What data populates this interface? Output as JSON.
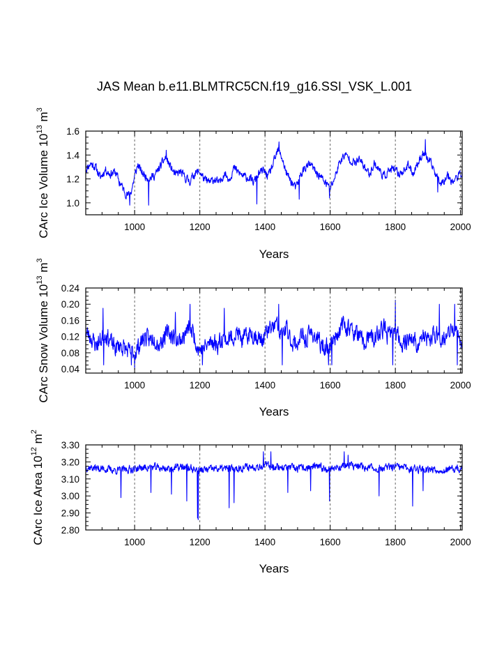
{
  "title": "JAS Mean b.e11.BLMTRC5CN.f19_g16.SSI_VSK_L.001",
  "chart_data": [
    {
      "type": "line",
      "id": "ice-volume",
      "ylabel_main": "CArc Ice Volume 10",
      "ylabel_exp": "13",
      "ylabel_unit": " m",
      "ylabel_unit_exp": "3",
      "xlabel": "Years",
      "xlim": [
        850,
        2005
      ],
      "ylim": [
        0.9,
        1.6
      ],
      "x_ticks": [
        1000,
        1200,
        1400,
        1600,
        1800,
        2000
      ],
      "x_tick_labels": [
        "1000",
        "1200",
        "1400",
        "1600",
        "1800",
        "2000"
      ],
      "y_ticks": [
        1.0,
        1.2,
        1.4,
        1.6
      ],
      "y_tick_labels": [
        "1.0",
        "1.2",
        "1.4",
        "1.6"
      ],
      "grid": "vertical-dashed",
      "color": "#0000ff",
      "anchors": [
        [
          850,
          1.28
        ],
        [
          865,
          1.33
        ],
        [
          880,
          1.3
        ],
        [
          895,
          1.21
        ],
        [
          910,
          1.28
        ],
        [
          925,
          1.24
        ],
        [
          940,
          1.26
        ],
        [
          955,
          1.17
        ],
        [
          970,
          1.09
        ],
        [
          980,
          1.06
        ],
        [
          990,
          1.1
        ],
        [
          1000,
          1.22
        ],
        [
          1010,
          1.32
        ],
        [
          1020,
          1.26
        ],
        [
          1035,
          1.22
        ],
        [
          1050,
          1.21
        ],
        [
          1065,
          1.24
        ],
        [
          1080,
          1.31
        ],
        [
          1095,
          1.38
        ],
        [
          1110,
          1.3
        ],
        [
          1125,
          1.23
        ],
        [
          1140,
          1.26
        ],
        [
          1155,
          1.21
        ],
        [
          1170,
          1.18
        ],
        [
          1185,
          1.25
        ],
        [
          1200,
          1.26
        ],
        [
          1215,
          1.19
        ],
        [
          1230,
          1.17
        ],
        [
          1245,
          1.2
        ],
        [
          1260,
          1.16
        ],
        [
          1275,
          1.25
        ],
        [
          1290,
          1.2
        ],
        [
          1305,
          1.29
        ],
        [
          1320,
          1.25
        ],
        [
          1335,
          1.22
        ],
        [
          1350,
          1.21
        ],
        [
          1365,
          1.17
        ],
        [
          1380,
          1.24
        ],
        [
          1395,
          1.27
        ],
        [
          1410,
          1.22
        ],
        [
          1425,
          1.32
        ],
        [
          1440,
          1.44
        ],
        [
          1452,
          1.38
        ],
        [
          1465,
          1.25
        ],
        [
          1480,
          1.18
        ],
        [
          1495,
          1.12
        ],
        [
          1510,
          1.24
        ],
        [
          1525,
          1.3
        ],
        [
          1540,
          1.32
        ],
        [
          1555,
          1.26
        ],
        [
          1570,
          1.22
        ],
        [
          1585,
          1.17
        ],
        [
          1600,
          1.12
        ],
        [
          1615,
          1.22
        ],
        [
          1630,
          1.35
        ],
        [
          1645,
          1.4
        ],
        [
          1660,
          1.37
        ],
        [
          1675,
          1.33
        ],
        [
          1690,
          1.36
        ],
        [
          1705,
          1.3
        ],
        [
          1720,
          1.24
        ],
        [
          1735,
          1.33
        ],
        [
          1750,
          1.28
        ],
        [
          1765,
          1.22
        ],
        [
          1780,
          1.27
        ],
        [
          1795,
          1.28
        ],
        [
          1810,
          1.24
        ],
        [
          1825,
          1.27
        ],
        [
          1840,
          1.31
        ],
        [
          1855,
          1.25
        ],
        [
          1870,
          1.34
        ],
        [
          1885,
          1.42
        ],
        [
          1900,
          1.36
        ],
        [
          1915,
          1.3
        ],
        [
          1930,
          1.2
        ],
        [
          1945,
          1.17
        ],
        [
          1960,
          1.24
        ],
        [
          1975,
          1.18
        ],
        [
          1990,
          1.21
        ],
        [
          2005,
          1.26
        ]
      ],
      "noise_amp": 0.055,
      "noise_seed": 11,
      "spikes": [
        [
          985,
          0.98
        ],
        [
          1043,
          0.98
        ],
        [
          1375,
          0.99
        ],
        [
          1443,
          1.51
        ],
        [
          1505,
          1.03
        ],
        [
          1598,
          1.04
        ],
        [
          1892,
          1.53
        ],
        [
          1930,
          1.09
        ],
        [
          953,
          1.14
        ],
        [
          1097,
          1.44
        ]
      ]
    },
    {
      "type": "line",
      "id": "snow-volume",
      "ylabel_main": "CArc Snow Volume 10",
      "ylabel_exp": "13",
      "ylabel_unit": " m",
      "ylabel_unit_exp": "3",
      "xlabel": "Years",
      "xlim": [
        850,
        2005
      ],
      "ylim": [
        0.03,
        0.24
      ],
      "x_ticks": [
        1000,
        1200,
        1400,
        1600,
        1800,
        2000
      ],
      "x_tick_labels": [
        "1000",
        "1200",
        "1400",
        "1600",
        "1800",
        "2000"
      ],
      "y_ticks": [
        0.04,
        0.08,
        0.12,
        0.16,
        0.2,
        0.24
      ],
      "y_tick_labels": [
        "0.04",
        "0.08",
        "0.12",
        "0.16",
        "0.20",
        "0.24"
      ],
      "grid": "vertical-dashed",
      "color": "#0000ff",
      "anchors": [
        [
          850,
          0.13
        ],
        [
          865,
          0.12
        ],
        [
          880,
          0.1
        ],
        [
          895,
          0.11
        ],
        [
          910,
          0.13
        ],
        [
          925,
          0.11
        ],
        [
          940,
          0.09
        ],
        [
          955,
          0.1
        ],
        [
          970,
          0.09
        ],
        [
          985,
          0.08
        ],
        [
          1000,
          0.08
        ],
        [
          1015,
          0.1
        ],
        [
          1030,
          0.12
        ],
        [
          1045,
          0.11
        ],
        [
          1060,
          0.12
        ],
        [
          1075,
          0.1
        ],
        [
          1090,
          0.12
        ],
        [
          1105,
          0.13
        ],
        [
          1120,
          0.12
        ],
        [
          1135,
          0.11
        ],
        [
          1150,
          0.12
        ],
        [
          1165,
          0.14
        ],
        [
          1180,
          0.13
        ],
        [
          1195,
          0.09
        ],
        [
          1210,
          0.09
        ],
        [
          1225,
          0.1
        ],
        [
          1240,
          0.11
        ],
        [
          1255,
          0.1
        ],
        [
          1270,
          0.12
        ],
        [
          1285,
          0.11
        ],
        [
          1300,
          0.12
        ],
        [
          1315,
          0.13
        ],
        [
          1330,
          0.11
        ],
        [
          1345,
          0.12
        ],
        [
          1360,
          0.13
        ],
        [
          1375,
          0.12
        ],
        [
          1390,
          0.11
        ],
        [
          1405,
          0.13
        ],
        [
          1420,
          0.14
        ],
        [
          1435,
          0.15
        ],
        [
          1450,
          0.12
        ],
        [
          1465,
          0.14
        ],
        [
          1480,
          0.11
        ],
        [
          1495,
          0.1
        ],
        [
          1510,
          0.12
        ],
        [
          1525,
          0.11
        ],
        [
          1540,
          0.13
        ],
        [
          1555,
          0.12
        ],
        [
          1570,
          0.1
        ],
        [
          1585,
          0.09
        ],
        [
          1600,
          0.1
        ],
        [
          1615,
          0.12
        ],
        [
          1630,
          0.14
        ],
        [
          1645,
          0.15
        ],
        [
          1660,
          0.14
        ],
        [
          1675,
          0.13
        ],
        [
          1690,
          0.12
        ],
        [
          1705,
          0.1
        ],
        [
          1720,
          0.12
        ],
        [
          1735,
          0.11
        ],
        [
          1750,
          0.13
        ],
        [
          1765,
          0.14
        ],
        [
          1780,
          0.12
        ],
        [
          1795,
          0.13
        ],
        [
          1810,
          0.12
        ],
        [
          1825,
          0.1
        ],
        [
          1840,
          0.12
        ],
        [
          1855,
          0.11
        ],
        [
          1870,
          0.1
        ],
        [
          1885,
          0.12
        ],
        [
          1900,
          0.11
        ],
        [
          1915,
          0.12
        ],
        [
          1930,
          0.13
        ],
        [
          1945,
          0.11
        ],
        [
          1960,
          0.12
        ],
        [
          1975,
          0.14
        ],
        [
          1990,
          0.12
        ],
        [
          2005,
          0.11
        ]
      ],
      "noise_amp": 0.034,
      "noise_seed": 23,
      "spikes": [
        [
          903,
          0.19
        ],
        [
          905,
          0.05
        ],
        [
          990,
          0.05
        ],
        [
          1000,
          0.04
        ],
        [
          1125,
          0.18
        ],
        [
          1170,
          0.2
        ],
        [
          1208,
          0.05
        ],
        [
          1275,
          0.19
        ],
        [
          1442,
          0.2
        ],
        [
          1453,
          0.05
        ],
        [
          1595,
          0.05
        ],
        [
          1605,
          0.05
        ],
        [
          1800,
          0.21
        ],
        [
          1792,
          0.05
        ],
        [
          1935,
          0.2
        ],
        [
          1982,
          0.2
        ],
        [
          1990,
          0.05
        ]
      ]
    },
    {
      "type": "line",
      "id": "ice-area",
      "ylabel_main": "CArc Ice Area 10",
      "ylabel_exp": "12",
      "ylabel_unit": " m",
      "ylabel_unit_exp": "2",
      "xlabel": "Years",
      "xlim": [
        850,
        2005
      ],
      "ylim": [
        2.8,
        3.3
      ],
      "x_ticks": [
        1000,
        1200,
        1400,
        1600,
        1800,
        2000
      ],
      "x_tick_labels": [
        "1000",
        "1200",
        "1400",
        "1600",
        "1800",
        "2000"
      ],
      "y_ticks": [
        2.8,
        2.9,
        3.0,
        3.1,
        3.2,
        3.3
      ],
      "y_tick_labels": [
        "2.80",
        "2.90",
        "3.00",
        "3.10",
        "3.20",
        "3.30"
      ],
      "grid": "vertical-dashed",
      "color": "#0000ff",
      "anchors": [
        [
          850,
          3.17
        ],
        [
          900,
          3.16
        ],
        [
          950,
          3.15
        ],
        [
          1000,
          3.16
        ],
        [
          1050,
          3.17
        ],
        [
          1100,
          3.16
        ],
        [
          1150,
          3.17
        ],
        [
          1200,
          3.15
        ],
        [
          1250,
          3.16
        ],
        [
          1300,
          3.16
        ],
        [
          1350,
          3.17
        ],
        [
          1400,
          3.18
        ],
        [
          1450,
          3.17
        ],
        [
          1500,
          3.16
        ],
        [
          1550,
          3.17
        ],
        [
          1600,
          3.16
        ],
        [
          1650,
          3.18
        ],
        [
          1700,
          3.17
        ],
        [
          1750,
          3.16
        ],
        [
          1800,
          3.17
        ],
        [
          1850,
          3.16
        ],
        [
          1900,
          3.16
        ],
        [
          1950,
          3.15
        ],
        [
          2005,
          3.16
        ]
      ],
      "noise_amp": 0.035,
      "noise_seed": 37,
      "spikes": [
        [
          958,
          2.99
        ],
        [
          1050,
          3.02
        ],
        [
          1113,
          3.01
        ],
        [
          1160,
          2.97
        ],
        [
          1193,
          2.87
        ],
        [
          1195,
          2.86
        ],
        [
          1290,
          2.93
        ],
        [
          1305,
          2.96
        ],
        [
          1395,
          3.26
        ],
        [
          1418,
          3.26
        ],
        [
          1470,
          3.02
        ],
        [
          1540,
          3.03
        ],
        [
          1598,
          2.97
        ],
        [
          1643,
          3.26
        ],
        [
          1655,
          3.24
        ],
        [
          1750,
          3.0
        ],
        [
          1853,
          2.94
        ],
        [
          1885,
          3.03
        ]
      ]
    }
  ]
}
